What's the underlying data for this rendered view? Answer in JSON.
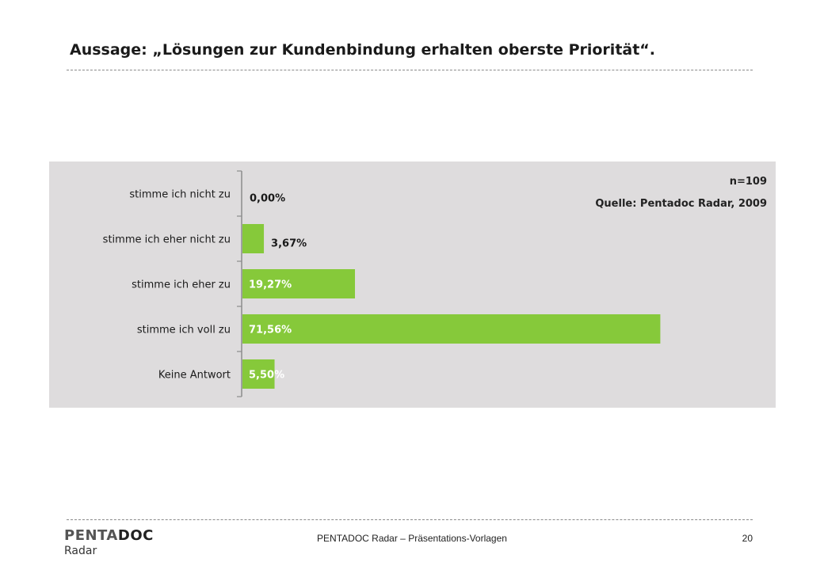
{
  "slide": {
    "title": "Aussage: „Lösungen zur Kundenbindung erhalten oberste Priorität“."
  },
  "chart_data": {
    "type": "bar",
    "orientation": "horizontal",
    "categories": [
      "stimme ich nicht zu",
      "stimme ich eher nicht zu",
      "stimme ich eher zu",
      "stimme ich voll zu",
      "Keine Antwort"
    ],
    "values": [
      0.0,
      3.67,
      19.27,
      71.56,
      5.5
    ],
    "labels": [
      "0,00%",
      "3,67%",
      "19,27%",
      "71,56%",
      "5,50%"
    ],
    "unit": "%",
    "xlim": [
      0,
      80
    ],
    "bar_color": "#86c93a",
    "background": "#dedcdd",
    "grid": false,
    "legend": "none",
    "sample_size": "n=109",
    "source": "Quelle: Pentadoc Radar, 2009"
  },
  "footer": {
    "logo_part1": "PENTA",
    "logo_part2": "DOC",
    "logo_sub": "Radar",
    "center_text": "PENTADOC Radar – Präsentations-Vorlagen",
    "page_number": "20"
  }
}
